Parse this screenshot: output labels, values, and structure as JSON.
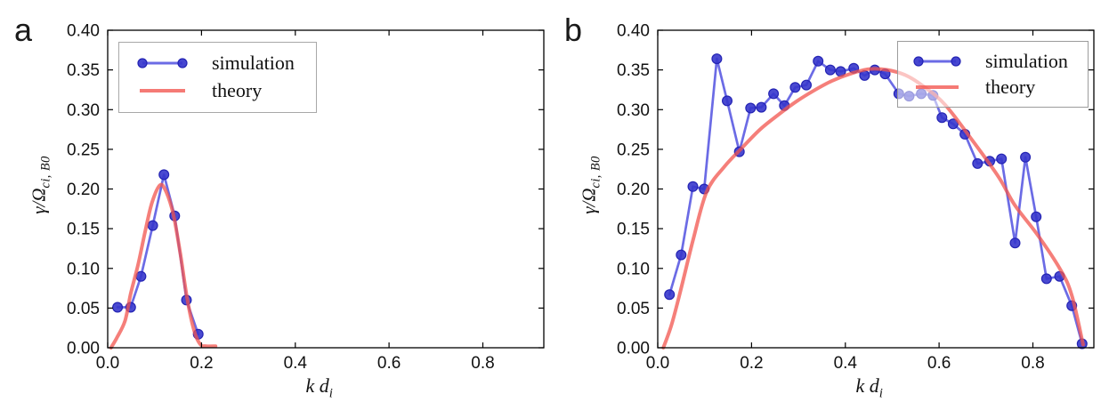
{
  "figure": {
    "background": "#ffffff"
  },
  "chart_data": [
    {
      "type": "line",
      "panel_label": "a",
      "xlabel_main": "k d",
      "xlabel_sub": "i",
      "ylabel_main": "γ/Ω",
      "ylabel_sub": "ci, B0",
      "xlim": [
        0,
        0.93
      ],
      "ylim": [
        0,
        0.4
      ],
      "xticks": [
        0,
        0.2,
        0.4,
        0.6,
        0.8
      ],
      "xtick_labels": [
        "0.0",
        "0.2",
        "0.4",
        "0.6",
        "0.8"
      ],
      "yticks": [
        0,
        0.05,
        0.1,
        0.15,
        0.2,
        0.25,
        0.3,
        0.35,
        0.4
      ],
      "ytick_labels": [
        "0.00",
        "0.05",
        "0.10",
        "0.15",
        "0.20",
        "0.25",
        "0.30",
        "0.35",
        "0.40"
      ],
      "grid": false,
      "legend_position": "top-left",
      "series": [
        {
          "name": "simulation",
          "color": "#4a4adf",
          "opacity": 0.82,
          "width": 2.7,
          "marker": true,
          "marker_color": "#3636cc",
          "marker_size": 5.4,
          "x": [
            0.021,
            0.049,
            0.071,
            0.096,
            0.12,
            0.143,
            0.168,
            0.193
          ],
          "y": [
            0.051,
            0.051,
            0.09,
            0.154,
            0.218,
            0.166,
            0.06,
            0.017
          ]
        },
        {
          "name": "theory",
          "color": "#f2544e",
          "opacity": 0.75,
          "width": 4.0,
          "marker": false,
          "smooth": true,
          "x": [
            0.007,
            0.02,
            0.037,
            0.049,
            0.065,
            0.08,
            0.095,
            0.112,
            0.125,
            0.14,
            0.155,
            0.17,
            0.185,
            0.198,
            0.21,
            0.23
          ],
          "y": [
            0.0,
            0.013,
            0.034,
            0.068,
            0.105,
            0.147,
            0.184,
            0.205,
            0.196,
            0.168,
            0.118,
            0.06,
            0.02,
            0.004,
            0.002,
            0.002
          ]
        }
      ]
    },
    {
      "type": "line",
      "panel_label": "b",
      "xlabel_main": "k d",
      "xlabel_sub": "i",
      "ylabel_main": "γ/Ω",
      "ylabel_sub": "ci, B0",
      "xlim": [
        0,
        0.93
      ],
      "ylim": [
        0,
        0.4
      ],
      "xticks": [
        0,
        0.2,
        0.4,
        0.6,
        0.8
      ],
      "xtick_labels": [
        "0.0",
        "0.2",
        "0.4",
        "0.6",
        "0.8"
      ],
      "yticks": [
        0,
        0.05,
        0.1,
        0.15,
        0.2,
        0.25,
        0.3,
        0.35,
        0.4
      ],
      "ytick_labels": [
        "0.00",
        "0.05",
        "0.10",
        "0.15",
        "0.20",
        "0.25",
        "0.30",
        "0.35",
        "0.40"
      ],
      "grid": false,
      "legend_position": "top-right",
      "series": [
        {
          "name": "simulation",
          "color": "#4a4adf",
          "opacity": 0.82,
          "width": 2.7,
          "marker": true,
          "marker_color": "#3636cc",
          "marker_size": 5.4,
          "x": [
            0.025,
            0.05,
            0.075,
            0.099,
            0.126,
            0.148,
            0.174,
            0.198,
            0.221,
            0.247,
            0.27,
            0.293,
            0.317,
            0.342,
            0.368,
            0.39,
            0.418,
            0.441,
            0.463,
            0.485,
            0.514,
            0.536,
            0.562,
            0.587,
            0.606,
            0.63,
            0.655,
            0.682,
            0.708,
            0.733,
            0.762,
            0.784,
            0.807,
            0.829,
            0.857,
            0.883,
            0.905
          ],
          "y": [
            0.067,
            0.117,
            0.203,
            0.2,
            0.364,
            0.311,
            0.247,
            0.302,
            0.303,
            0.32,
            0.305,
            0.328,
            0.331,
            0.361,
            0.35,
            0.348,
            0.352,
            0.343,
            0.35,
            0.345,
            0.32,
            0.317,
            0.32,
            0.318,
            0.29,
            0.282,
            0.269,
            0.232,
            0.235,
            0.238,
            0.132,
            0.24,
            0.165,
            0.087,
            0.09,
            0.053,
            0.005
          ]
        },
        {
          "name": "theory",
          "color": "#f2544e",
          "opacity": 0.75,
          "width": 4.0,
          "marker": false,
          "smooth": true,
          "x": [
            0.012,
            0.03,
            0.05,
            0.075,
            0.104,
            0.142,
            0.18,
            0.218,
            0.256,
            0.295,
            0.333,
            0.371,
            0.41,
            0.45,
            0.49,
            0.53,
            0.57,
            0.613,
            0.67,
            0.727,
            0.761,
            0.809,
            0.859,
            0.883,
            0.907
          ],
          "y": [
            0.0,
            0.03,
            0.075,
            0.135,
            0.196,
            0.228,
            0.252,
            0.275,
            0.293,
            0.31,
            0.324,
            0.336,
            0.345,
            0.351,
            0.35,
            0.343,
            0.328,
            0.306,
            0.262,
            0.215,
            0.18,
            0.143,
            0.098,
            0.066,
            0.004
          ]
        }
      ]
    }
  ]
}
